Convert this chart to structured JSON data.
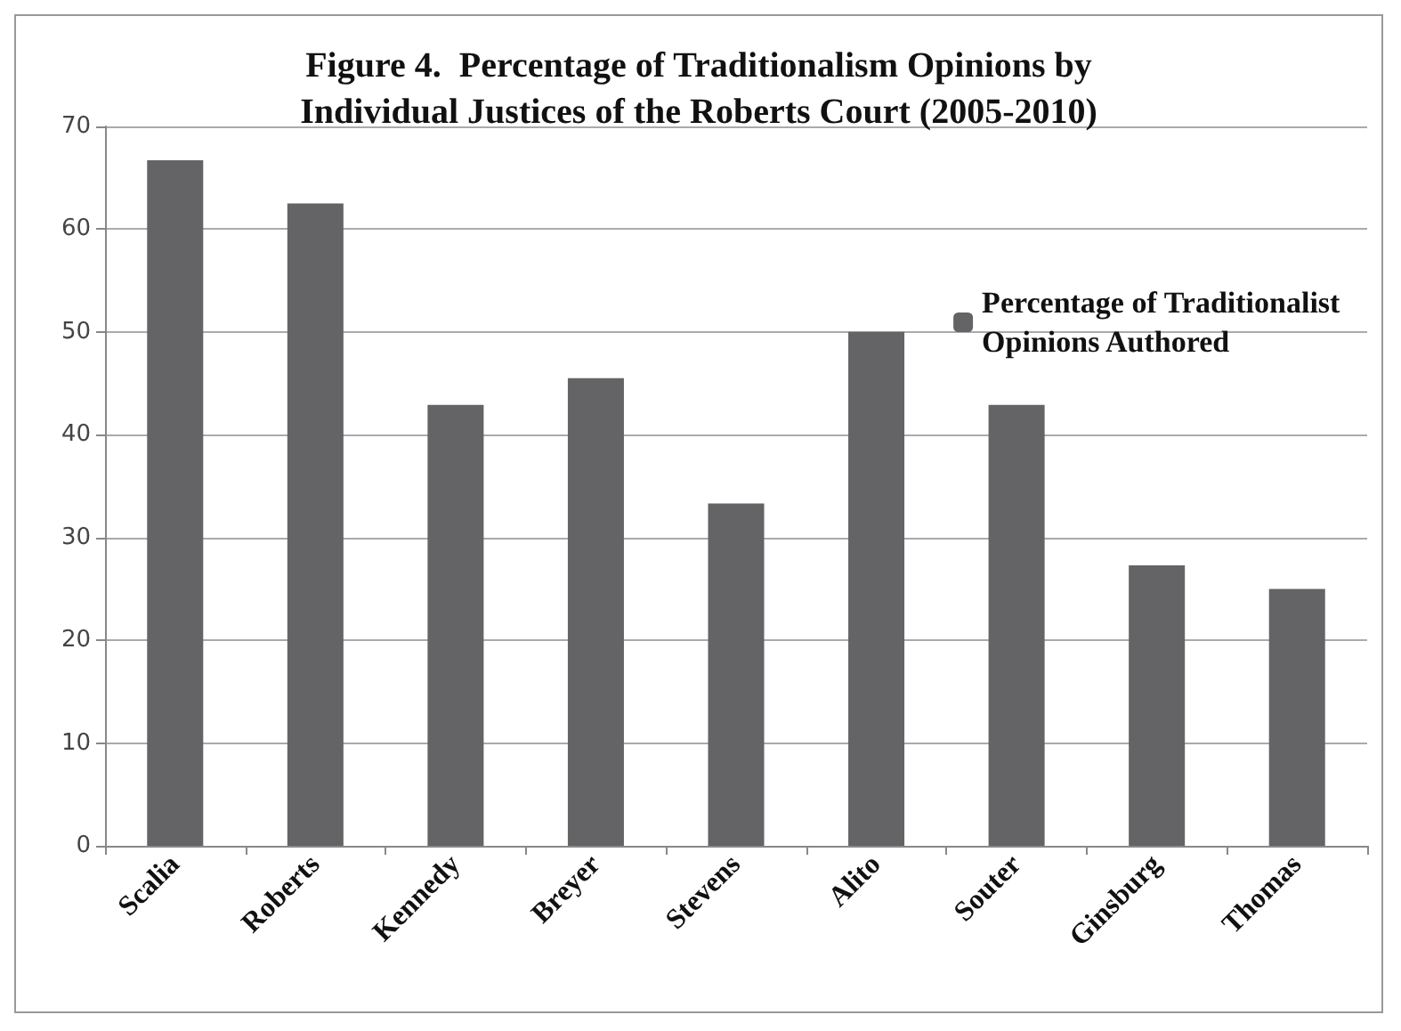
{
  "chart_data": {
    "type": "bar",
    "title": "Figure 4.  Percentage of Traditionalism Opinions by\nIndividual Justices of the Roberts Court (2005-2010)",
    "categories": [
      "Scalia",
      "Roberts",
      "Kennedy",
      "Breyer",
      "Stevens",
      "Alito",
      "Souter",
      "Ginsburg",
      "Thomas"
    ],
    "series": [
      {
        "name": "Percentage of Traditionalist\nOpinions Authored",
        "color": "#646466",
        "values": [
          66.7,
          62.5,
          42.9,
          45.5,
          33.3,
          50,
          42.9,
          27.3,
          25
        ]
      }
    ],
    "ylim": [
      0,
      70
    ],
    "yticks": [
      0,
      10,
      20,
      30,
      40,
      50,
      60,
      70
    ],
    "grid": "y",
    "legend": "top right"
  }
}
